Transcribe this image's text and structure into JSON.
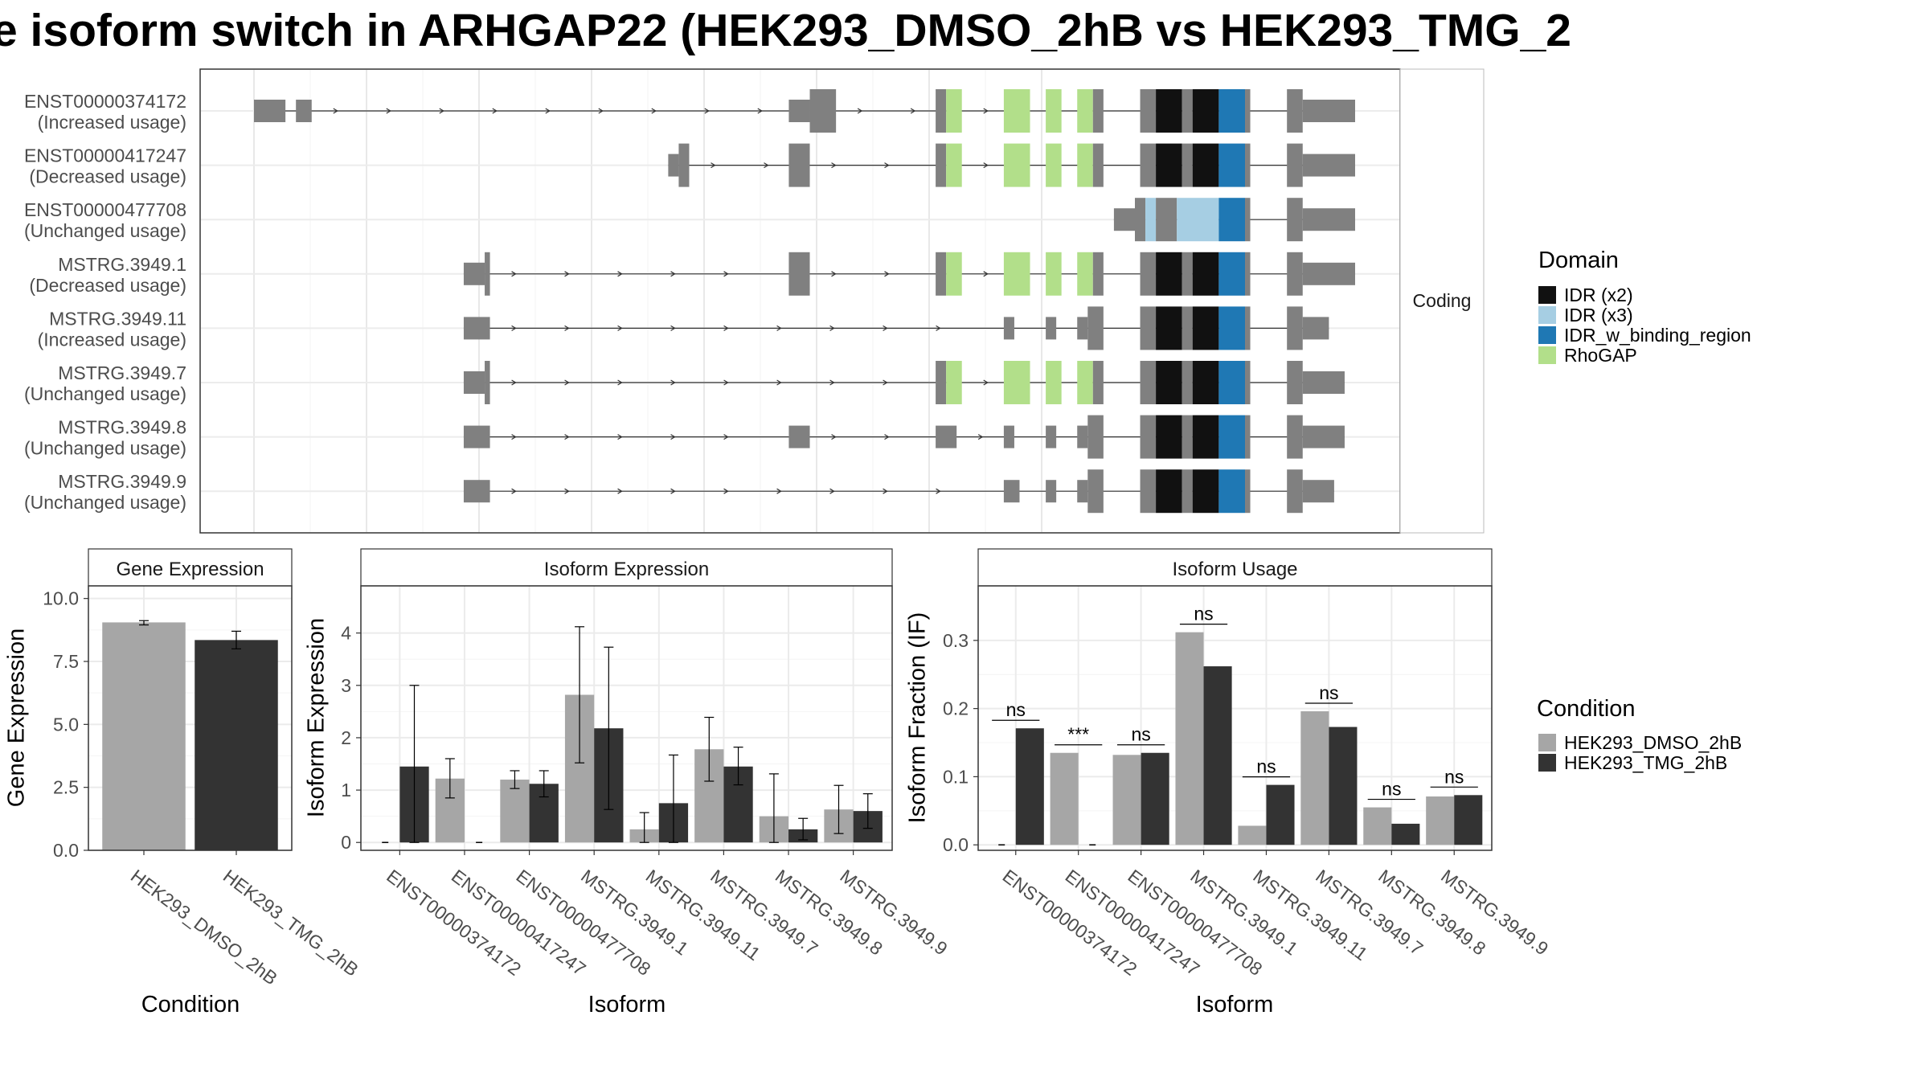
{
  "title": "e isoform switch in ARHGAP22 (HEK293_DMSO_2hB vs HEK293_TMG_2",
  "colors": {
    "exon": "#808080",
    "IDR (x2)": "#111111",
    "IDR (x3)": "#a6cee3",
    "IDR_w_binding_region": "#1f78b4",
    "RhoGAP": "#b2df8a",
    "dmso": "#a6a6a6",
    "tmg": "#333333"
  },
  "structure": {
    "facet_label": "Coding",
    "domain_legend_title": "Domain",
    "domain_legend": [
      "IDR (x2)",
      "IDR (x3)",
      "IDR_w_binding_region",
      "RhoGAP"
    ],
    "isoforms": [
      {
        "id": "ENST00000374172",
        "usage": "(Increased usage)",
        "exons": [
          [
            0.0,
            0.6,
            "U"
          ],
          [
            0.8,
            1.1,
            "U"
          ],
          [
            10.2,
            10.6,
            "U"
          ],
          [
            10.6,
            11.1,
            "C"
          ],
          [
            13.0,
            13.2,
            "C"
          ],
          [
            13.2,
            13.5,
            "RhoGAP"
          ],
          [
            14.3,
            14.8,
            "RhoGAP"
          ],
          [
            15.1,
            15.4,
            "RhoGAP"
          ],
          [
            15.7,
            16.0,
            "RhoGAP"
          ],
          [
            16.0,
            16.2,
            "C"
          ],
          [
            16.9,
            17.2,
            "C"
          ],
          [
            17.2,
            17.7,
            "IDR (x2)"
          ],
          [
            17.7,
            17.9,
            "C"
          ],
          [
            17.9,
            18.4,
            "IDR (x2)"
          ],
          [
            18.4,
            18.9,
            "IDR_w_binding_region"
          ],
          [
            18.9,
            19.0,
            "C"
          ],
          [
            19.7,
            20.0,
            "C"
          ],
          [
            20.0,
            21.0,
            "U"
          ]
        ]
      },
      {
        "id": "ENST00000417247",
        "usage": "(Decreased usage)",
        "exons": [
          [
            7.9,
            8.1,
            "U"
          ],
          [
            8.1,
            8.3,
            "C"
          ],
          [
            10.2,
            10.6,
            "C"
          ],
          [
            13.0,
            13.2,
            "C"
          ],
          [
            13.2,
            13.5,
            "RhoGAP"
          ],
          [
            14.3,
            14.8,
            "RhoGAP"
          ],
          [
            15.1,
            15.4,
            "RhoGAP"
          ],
          [
            15.7,
            16.0,
            "RhoGAP"
          ],
          [
            16.0,
            16.2,
            "C"
          ],
          [
            16.9,
            17.2,
            "C"
          ],
          [
            17.2,
            17.7,
            "IDR (x2)"
          ],
          [
            17.7,
            17.9,
            "C"
          ],
          [
            17.9,
            18.4,
            "IDR (x2)"
          ],
          [
            18.4,
            18.9,
            "IDR_w_binding_region"
          ],
          [
            18.9,
            19.0,
            "C"
          ],
          [
            19.7,
            20.0,
            "C"
          ],
          [
            20.0,
            21.0,
            "U"
          ]
        ]
      },
      {
        "id": "ENST00000477708",
        "usage": "(Unchanged usage)",
        "exons": [
          [
            16.4,
            16.8,
            "U"
          ],
          [
            16.8,
            17.0,
            "C"
          ],
          [
            17.0,
            17.2,
            "IDR (x3)"
          ],
          [
            17.2,
            17.6,
            "C"
          ],
          [
            17.6,
            18.4,
            "IDR (x3)"
          ],
          [
            18.4,
            18.9,
            "IDR_w_binding_region"
          ],
          [
            18.9,
            19.0,
            "C"
          ],
          [
            19.7,
            20.0,
            "C"
          ],
          [
            20.0,
            21.0,
            "U"
          ]
        ]
      },
      {
        "id": "MSTRG.3949.1",
        "usage": "(Decreased usage)",
        "exons": [
          [
            4.0,
            4.4,
            "U"
          ],
          [
            4.4,
            4.5,
            "C"
          ],
          [
            10.2,
            10.6,
            "C"
          ],
          [
            13.0,
            13.2,
            "C"
          ],
          [
            13.2,
            13.5,
            "RhoGAP"
          ],
          [
            14.3,
            14.8,
            "RhoGAP"
          ],
          [
            15.1,
            15.4,
            "RhoGAP"
          ],
          [
            15.7,
            16.0,
            "RhoGAP"
          ],
          [
            16.0,
            16.2,
            "C"
          ],
          [
            16.9,
            17.2,
            "C"
          ],
          [
            17.2,
            17.7,
            "IDR (x2)"
          ],
          [
            17.7,
            17.9,
            "C"
          ],
          [
            17.9,
            18.4,
            "IDR (x2)"
          ],
          [
            18.4,
            18.9,
            "IDR_w_binding_region"
          ],
          [
            18.9,
            19.0,
            "C"
          ],
          [
            19.7,
            20.0,
            "C"
          ],
          [
            20.0,
            21.0,
            "U"
          ]
        ]
      },
      {
        "id": "MSTRG.3949.11",
        "usage": "(Increased usage)",
        "exons": [
          [
            4.0,
            4.5,
            "U"
          ],
          [
            14.3,
            14.5,
            "U"
          ],
          [
            15.1,
            15.3,
            "U"
          ],
          [
            15.7,
            15.9,
            "U"
          ],
          [
            15.9,
            16.2,
            "C"
          ],
          [
            16.9,
            17.2,
            "C"
          ],
          [
            17.2,
            17.7,
            "IDR (x2)"
          ],
          [
            17.7,
            17.9,
            "C"
          ],
          [
            17.9,
            18.4,
            "IDR (x2)"
          ],
          [
            18.4,
            18.9,
            "IDR_w_binding_region"
          ],
          [
            18.9,
            19.0,
            "C"
          ],
          [
            19.7,
            20.0,
            "C"
          ],
          [
            20.0,
            20.5,
            "U"
          ]
        ]
      },
      {
        "id": "MSTRG.3949.7",
        "usage": "(Unchanged usage)",
        "exons": [
          [
            4.0,
            4.4,
            "U"
          ],
          [
            4.4,
            4.5,
            "C"
          ],
          [
            13.0,
            13.2,
            "C"
          ],
          [
            13.2,
            13.5,
            "RhoGAP"
          ],
          [
            14.3,
            14.8,
            "RhoGAP"
          ],
          [
            15.1,
            15.4,
            "RhoGAP"
          ],
          [
            15.7,
            16.0,
            "RhoGAP"
          ],
          [
            16.0,
            16.2,
            "C"
          ],
          [
            16.9,
            17.2,
            "C"
          ],
          [
            17.2,
            17.7,
            "IDR (x2)"
          ],
          [
            17.7,
            17.9,
            "C"
          ],
          [
            17.9,
            18.4,
            "IDR (x2)"
          ],
          [
            18.4,
            18.9,
            "IDR_w_binding_region"
          ],
          [
            18.9,
            19.0,
            "C"
          ],
          [
            19.7,
            20.0,
            "C"
          ],
          [
            20.0,
            20.8,
            "U"
          ]
        ]
      },
      {
        "id": "MSTRG.3949.8",
        "usage": "(Unchanged usage)",
        "exons": [
          [
            4.0,
            4.5,
            "U"
          ],
          [
            10.2,
            10.6,
            "U"
          ],
          [
            13.0,
            13.4,
            "U"
          ],
          [
            14.3,
            14.5,
            "U"
          ],
          [
            15.1,
            15.3,
            "U"
          ],
          [
            15.7,
            15.9,
            "U"
          ],
          [
            15.9,
            16.2,
            "C"
          ],
          [
            16.9,
            17.2,
            "C"
          ],
          [
            17.2,
            17.7,
            "IDR (x2)"
          ],
          [
            17.7,
            17.9,
            "C"
          ],
          [
            17.9,
            18.4,
            "IDR (x2)"
          ],
          [
            18.4,
            18.9,
            "IDR_w_binding_region"
          ],
          [
            18.9,
            19.0,
            "C"
          ],
          [
            19.7,
            20.0,
            "C"
          ],
          [
            20.0,
            20.8,
            "U"
          ]
        ]
      },
      {
        "id": "MSTRG.3949.9",
        "usage": "(Unchanged usage)",
        "exons": [
          [
            4.0,
            4.5,
            "U"
          ],
          [
            14.3,
            14.6,
            "U"
          ],
          [
            15.1,
            15.3,
            "U"
          ],
          [
            15.7,
            15.9,
            "U"
          ],
          [
            15.9,
            16.2,
            "C"
          ],
          [
            16.9,
            17.2,
            "C"
          ],
          [
            17.2,
            17.7,
            "IDR (x2)"
          ],
          [
            17.7,
            17.9,
            "C"
          ],
          [
            17.9,
            18.4,
            "IDR (x2)"
          ],
          [
            18.4,
            18.9,
            "IDR_w_binding_region"
          ],
          [
            18.9,
            19.0,
            "C"
          ],
          [
            19.7,
            20.0,
            "C"
          ],
          [
            20.0,
            20.6,
            "U"
          ]
        ]
      }
    ]
  },
  "chart_data": [
    {
      "type": "bar",
      "title": "Gene Expression",
      "xlabel": "Condition",
      "ylabel": "Gene Expression",
      "categories": [
        "HEK293_DMSO_2hB",
        "HEK293_TMG_2hB"
      ],
      "values": [
        9.05,
        8.35
      ],
      "errors": [
        [
          8.95,
          9.12
        ],
        [
          8.0,
          8.7
        ]
      ],
      "ylim": [
        0,
        10.5
      ],
      "yticks": [
        "0.0",
        "2.5",
        "5.0",
        "7.5",
        "10.0"
      ]
    },
    {
      "type": "bar",
      "title": "Isoform Expression",
      "xlabel": "Isoform",
      "ylabel": "Isoform Expression",
      "categories": [
        "ENST00000374172",
        "ENST00000417247",
        "ENST00000477708",
        "MSTRG.3949.1",
        "MSTRG.3949.11",
        "MSTRG.3949.7",
        "MSTRG.3949.8",
        "MSTRG.3949.9"
      ],
      "series": [
        {
          "name": "HEK293_DMSO_2hB",
          "values": [
            0.0,
            1.22,
            1.2,
            2.82,
            0.25,
            1.78,
            0.5,
            0.63
          ],
          "errors": [
            [
              0,
              0
            ],
            [
              0.85,
              1.6
            ],
            [
              1.03,
              1.37
            ],
            [
              1.52,
              4.12
            ],
            [
              0,
              0.57
            ],
            [
              1.17,
              2.39
            ],
            [
              0,
              1.31
            ],
            [
              0.17,
              1.09
            ]
          ]
        },
        {
          "name": "HEK293_TMG_2hB",
          "values": [
            1.45,
            0.0,
            1.12,
            2.18,
            0.75,
            1.45,
            0.25,
            0.6
          ],
          "errors": [
            [
              0,
              3.0
            ],
            [
              0,
              0
            ],
            [
              0.87,
              1.37
            ],
            [
              0.63,
              3.73
            ],
            [
              0,
              1.67
            ],
            [
              1.1,
              1.82
            ],
            [
              0.05,
              0.46
            ],
            [
              0.27,
              0.93
            ]
          ]
        }
      ],
      "ylim": [
        -0.15,
        4.9
      ],
      "yticks": [
        "0",
        "1",
        "2",
        "3",
        "4"
      ]
    },
    {
      "type": "bar",
      "title": "Isoform Usage",
      "xlabel": "Isoform",
      "ylabel": "Isoform Fraction (IF)",
      "categories": [
        "ENST00000374172",
        "ENST00000417247",
        "ENST00000477708",
        "MSTRG.3949.1",
        "MSTRG.3949.11",
        "MSTRG.3949.7",
        "MSTRG.3949.8",
        "MSTRG.3949.9"
      ],
      "series": [
        {
          "name": "HEK293_DMSO_2hB",
          "values": [
            0.0,
            0.135,
            0.132,
            0.312,
            0.028,
            0.196,
            0.055,
            0.071
          ]
        },
        {
          "name": "HEK293_TMG_2hB",
          "values": [
            0.171,
            0.0,
            0.135,
            0.262,
            0.088,
            0.173,
            0.031,
            0.073
          ]
        }
      ],
      "significance": [
        "ns",
        "***",
        "ns",
        "ns",
        "ns",
        "ns",
        "ns",
        "ns"
      ],
      "ylim": [
        -0.008,
        0.38
      ],
      "yticks": [
        "0.0",
        "0.1",
        "0.2",
        "0.3"
      ]
    }
  ],
  "condition_legend": {
    "title": "Condition",
    "items": [
      "HEK293_DMSO_2hB",
      "HEK293_TMG_2hB"
    ]
  }
}
